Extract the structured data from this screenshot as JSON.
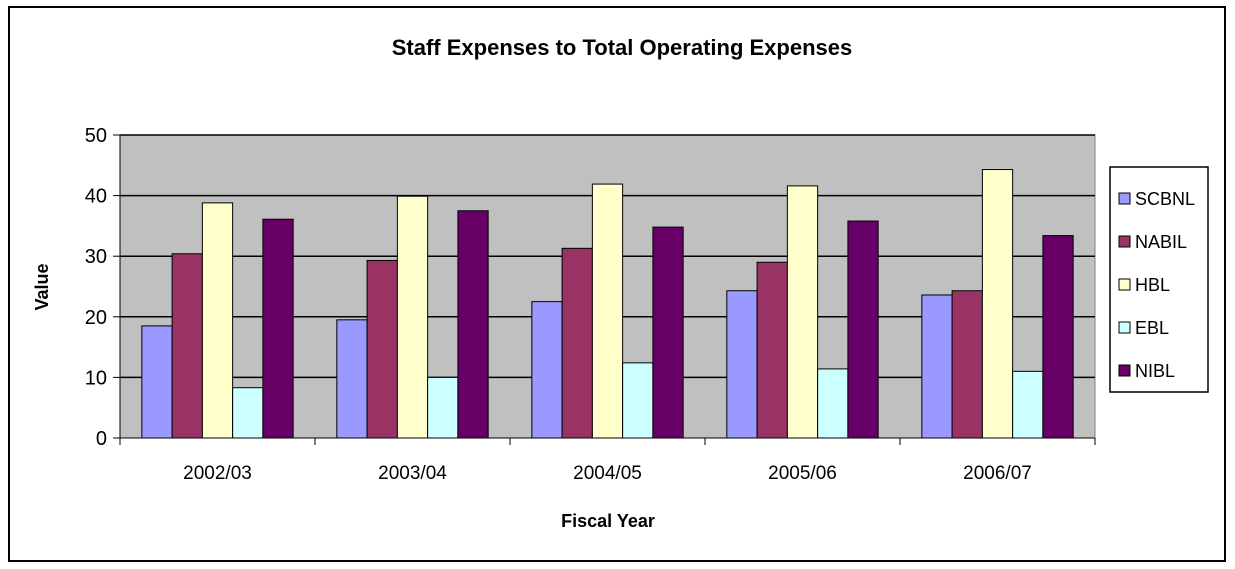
{
  "chart_data": {
    "type": "bar",
    "title": "Staff Expenses to Total Operating Expenses",
    "xlabel": "Fiscal Year",
    "ylabel": "Value",
    "categories": [
      "2002/03",
      "2003/04",
      "2004/05",
      "2005/06",
      "2006/07"
    ],
    "ylim": [
      0,
      50
    ],
    "yticks": [
      0,
      10,
      20,
      30,
      40,
      50
    ],
    "grid": true,
    "legend_position": "right",
    "plot_background": "#c0c0c0",
    "series": [
      {
        "name": "SCBNL",
        "color": "#9999ff",
        "values": [
          18.5,
          19.5,
          22.5,
          24.3,
          23.6
        ]
      },
      {
        "name": "NABIL",
        "color": "#993366",
        "values": [
          30.4,
          29.3,
          31.3,
          29.0,
          24.3
        ]
      },
      {
        "name": "HBL",
        "color": "#ffffcc",
        "values": [
          38.8,
          39.9,
          41.9,
          41.6,
          44.3
        ]
      },
      {
        "name": "EBL",
        "color": "#ccffff",
        "values": [
          8.3,
          10.0,
          12.4,
          11.4,
          11.0
        ]
      },
      {
        "name": "NIBL",
        "color": "#660066",
        "values": [
          36.1,
          37.5,
          34.8,
          35.8,
          33.4
        ]
      }
    ]
  }
}
